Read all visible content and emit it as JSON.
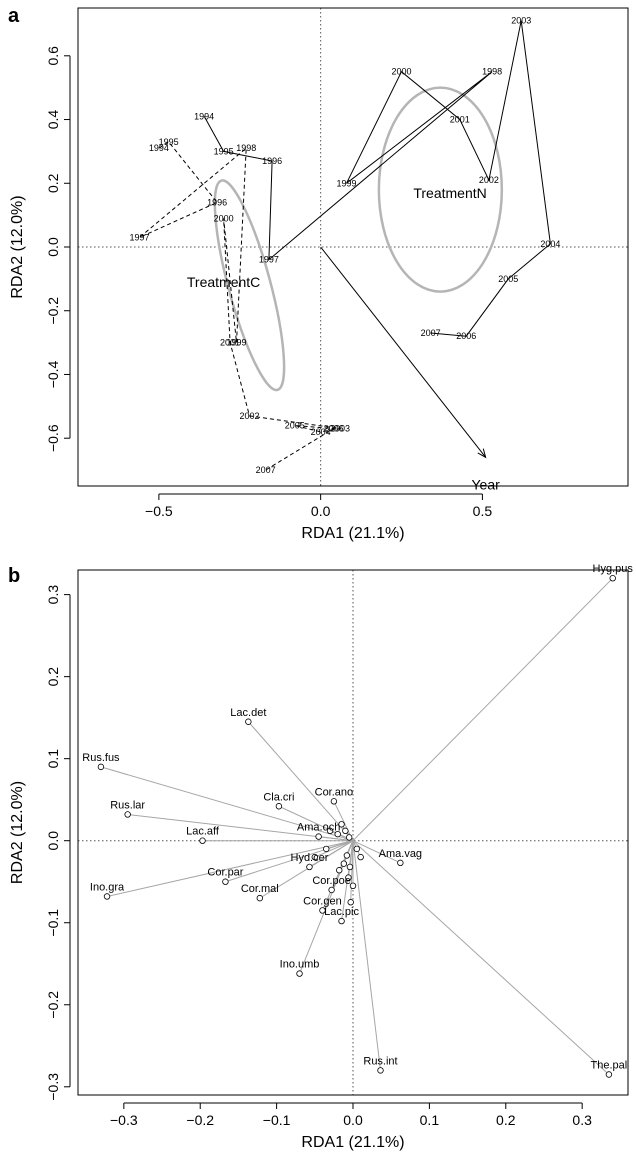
{
  "chart_data": [
    {
      "panel": "a",
      "type": "scatter",
      "xlabel": "RDA1 (21.1%)",
      "ylabel": "RDA2 (12.0%)",
      "xlim": [
        -0.75,
        0.95
      ],
      "ylim": [
        -0.75,
        0.75
      ],
      "xticks": [
        -0.5,
        0.0,
        0.5
      ],
      "yticks": [
        -0.6,
        -0.4,
        -0.2,
        0.0,
        0.2,
        0.4,
        0.6
      ],
      "zero_lines": true,
      "series": [
        {
          "name": "TreatmentC",
          "line_style": "dashed",
          "points": [
            {
              "label": "1994",
              "x": -0.5,
              "y": 0.31
            },
            {
              "label": "1995",
              "x": -0.47,
              "y": 0.33
            },
            {
              "label": "1996",
              "x": -0.32,
              "y": 0.14
            },
            {
              "label": "1997",
              "x": -0.56,
              "y": 0.03
            },
            {
              "label": "1998",
              "x": -0.23,
              "y": 0.31
            },
            {
              "label": "1999",
              "x": -0.26,
              "y": -0.3
            },
            {
              "label": "2000",
              "x": -0.3,
              "y": 0.09
            },
            {
              "label": "2001",
              "x": -0.28,
              "y": -0.3
            },
            {
              "label": "2002",
              "x": -0.22,
              "y": -0.53
            },
            {
              "label": "2003",
              "x": 0.06,
              "y": -0.57
            },
            {
              "label": "2004",
              "x": 0.0,
              "y": -0.58
            },
            {
              "label": "2005",
              "x": -0.08,
              "y": -0.56
            },
            {
              "label": "2006",
              "x": 0.04,
              "y": -0.57
            },
            {
              "label": "2007",
              "x": -0.17,
              "y": -0.7
            }
          ]
        },
        {
          "name": "TreatmentN",
          "line_style": "solid",
          "points": [
            {
              "label": "1994",
              "x": -0.36,
              "y": 0.41
            },
            {
              "label": "1995",
              "x": -0.3,
              "y": 0.3
            },
            {
              "label": "1996",
              "x": -0.15,
              "y": 0.27
            },
            {
              "label": "1997",
              "x": -0.16,
              "y": -0.04
            },
            {
              "label": "1998",
              "x": 0.53,
              "y": 0.55
            },
            {
              "label": "1999",
              "x": 0.08,
              "y": 0.2
            },
            {
              "label": "2000",
              "x": 0.25,
              "y": 0.55
            },
            {
              "label": "2001",
              "x": 0.43,
              "y": 0.4
            },
            {
              "label": "2002",
              "x": 0.52,
              "y": 0.21
            },
            {
              "label": "2003",
              "x": 0.62,
              "y": 0.71
            },
            {
              "label": "2004",
              "x": 0.71,
              "y": 0.01
            },
            {
              "label": "2005",
              "x": 0.58,
              "y": -0.1
            },
            {
              "label": "2006",
              "x": 0.45,
              "y": -0.28
            },
            {
              "label": "2007",
              "x": 0.34,
              "y": -0.27
            }
          ]
        }
      ],
      "group_labels": [
        {
          "text": "TreatmentC",
          "x": -0.3,
          "y": -0.11
        },
        {
          "text": "TreatmentN",
          "x": 0.4,
          "y": 0.17
        }
      ],
      "ellipses": [
        {
          "name": "TreatmentC",
          "center": [
            -0.22,
            -0.12
          ],
          "rx": 0.065,
          "ry": 0.34,
          "angle_deg": -15
        },
        {
          "name": "TreatmentN",
          "center": [
            0.37,
            0.18
          ],
          "rx": 0.19,
          "ry": 0.32,
          "angle_deg": 0
        }
      ],
      "arrow": {
        "label": "Year",
        "from": [
          0,
          0
        ],
        "to": [
          0.51,
          -0.66
        ]
      }
    },
    {
      "panel": "b",
      "type": "scatter",
      "xlabel": "RDA1 (21.1%)",
      "ylabel": "RDA2 (12.0%)",
      "xlim": [
        -0.36,
        0.36
      ],
      "ylim": [
        -0.31,
        0.33
      ],
      "xticks": [
        -0.3,
        -0.2,
        -0.1,
        0.0,
        0.1,
        0.2,
        0.3
      ],
      "yticks": [
        -0.3,
        -0.2,
        -0.1,
        0.0,
        0.1,
        0.2,
        0.3
      ],
      "zero_lines": true,
      "species": [
        {
          "label": "Hyg.pus",
          "x": 0.34,
          "y": 0.32
        },
        {
          "label": "The.pal",
          "x": 0.335,
          "y": -0.285
        },
        {
          "label": "Rus.int",
          "x": 0.036,
          "y": -0.28
        },
        {
          "label": "Lac.det",
          "x": -0.137,
          "y": 0.145
        },
        {
          "label": "Rus.fus",
          "x": -0.33,
          "y": 0.09
        },
        {
          "label": "Rus.lar",
          "x": -0.295,
          "y": 0.032
        },
        {
          "label": "Lac.aff",
          "x": -0.197,
          "y": 0.0
        },
        {
          "label": "Ino.gra",
          "x": -0.322,
          "y": -0.068
        },
        {
          "label": "Cla.cri",
          "x": -0.097,
          "y": 0.042
        },
        {
          "label": "Cor.ano",
          "x": -0.025,
          "y": 0.048
        },
        {
          "label": "Ama.och",
          "x": -0.045,
          "y": 0.005
        },
        {
          "label": "Ama.vag",
          "x": 0.062,
          "y": -0.027
        },
        {
          "label": "Hyd.cer",
          "x": -0.057,
          "y": -0.032
        },
        {
          "label": "Cor.par",
          "x": -0.167,
          "y": -0.05
        },
        {
          "label": "Cor.mal",
          "x": -0.122,
          "y": -0.07
        },
        {
          "label": "Cor.poe",
          "x": -0.028,
          "y": -0.06
        },
        {
          "label": "Cor.gen",
          "x": -0.04,
          "y": -0.085
        },
        {
          "label": "Lac.pic",
          "x": -0.015,
          "y": -0.098
        },
        {
          "label": "Ino.umb",
          "x": -0.07,
          "y": -0.162
        }
      ],
      "minor_points": [
        {
          "x": -0.01,
          "y": 0.012
        },
        {
          "x": -0.02,
          "y": 0.008
        },
        {
          "x": -0.03,
          "y": 0.012
        },
        {
          "x": -0.005,
          "y": 0.004
        },
        {
          "x": 0.005,
          "y": -0.01
        },
        {
          "x": -0.008,
          "y": -0.018
        },
        {
          "x": -0.012,
          "y": -0.028
        },
        {
          "x": -0.018,
          "y": -0.036
        },
        {
          "x": -0.006,
          "y": -0.045
        },
        {
          "x": 0.0,
          "y": -0.055
        },
        {
          "x": -0.003,
          "y": -0.075
        },
        {
          "x": -0.035,
          "y": -0.01
        },
        {
          "x": -0.05,
          "y": -0.02
        },
        {
          "x": 0.01,
          "y": -0.02
        },
        {
          "x": -0.015,
          "y": 0.02
        },
        {
          "x": -0.004,
          "y": -0.032
        }
      ]
    }
  ]
}
